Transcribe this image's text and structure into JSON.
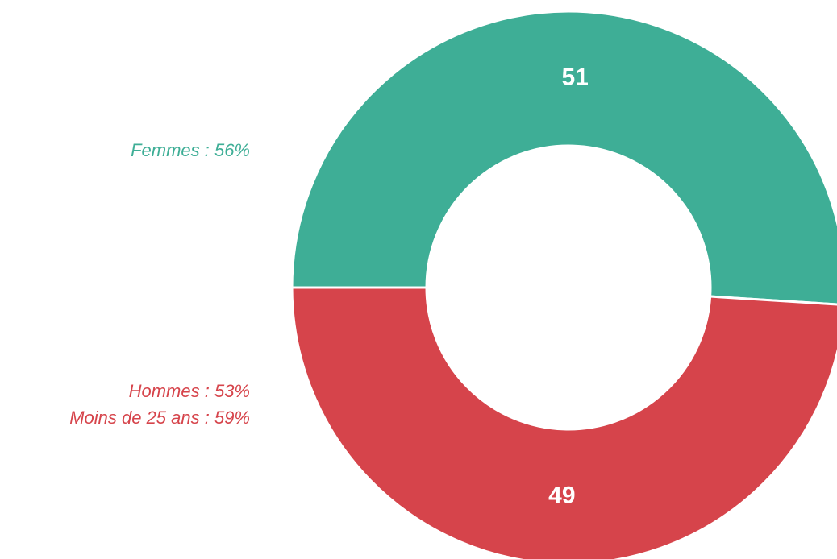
{
  "chart_data": {
    "type": "donut",
    "values": [
      51,
      49
    ],
    "colors": [
      "#3eae96",
      "#d6444b"
    ],
    "annotations": [
      {
        "lines": [
          "Femmes : 56%"
        ],
        "color": "#3eae96"
      },
      {
        "lines": [
          "Hommes : 53%",
          "Moins de 25 ans : 59%"
        ],
        "color": "#d6444b"
      }
    ]
  }
}
